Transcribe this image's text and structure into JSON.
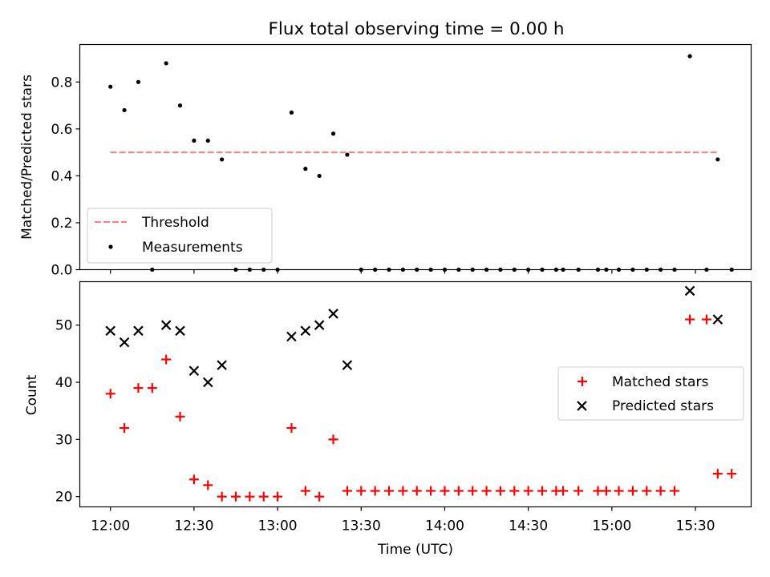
{
  "title": "Flux total observing time = 0.00 h",
  "xlabel": "Time (UTC)",
  "x_ticks": [
    "12:00",
    "12:30",
    "13:00",
    "13:30",
    "14:00",
    "14:30",
    "15:00",
    "15:30"
  ],
  "colors": {
    "threshold": "#ff7f7f",
    "measurements": "#000000",
    "matched": "#ff0000",
    "predicted": "#000000"
  },
  "chart_data": [
    {
      "type": "scatter",
      "ylabel": "Matched/Predicted stars",
      "xlim_minutes": [
        -11,
        230
      ],
      "ylim": [
        0,
        0.96
      ],
      "y_ticks": [
        "0.0",
        "0.2",
        "0.4",
        "0.6",
        "0.8"
      ],
      "legend_position": "lower-left",
      "threshold": {
        "name": "Threshold",
        "value": 0.5,
        "x_range_minutes": [
          0,
          218
        ]
      },
      "series": [
        {
          "name": "Measurements",
          "x_minutes": [
            0,
            5,
            10,
            15,
            20,
            25,
            30,
            35,
            40,
            45,
            50,
            55,
            60,
            65,
            70,
            75,
            80,
            85,
            90,
            95,
            100,
            105,
            110,
            115,
            120,
            125,
            130,
            135,
            140,
            145,
            150,
            155,
            160,
            162.5,
            168,
            175,
            178,
            182.5,
            187.5,
            192.5,
            197.5,
            202.5,
            208,
            214,
            218,
            223
          ],
          "values": [
            0.78,
            0.68,
            0.8,
            0.0,
            0.88,
            0.7,
            0.55,
            0.55,
            0.47,
            0.0,
            0.0,
            0.0,
            0.0,
            0.67,
            0.43,
            0.4,
            0.58,
            0.49,
            0.0,
            0.0,
            0.0,
            0.0,
            0.0,
            0.0,
            0.0,
            0.0,
            0.0,
            0.0,
            0.0,
            0.0,
            0.0,
            0.0,
            0.0,
            0.0,
            0.0,
            0.0,
            0.0,
            0.0,
            0.0,
            0.0,
            0.0,
            0.0,
            0.91,
            0.0,
            0.47,
            0.0
          ]
        }
      ]
    },
    {
      "type": "scatter",
      "ylabel": "Count",
      "xlim_minutes": [
        -11,
        230
      ],
      "ylim": [
        18.2,
        57.6
      ],
      "y_ticks": [
        "20",
        "30",
        "40",
        "50"
      ],
      "legend_position": "center-right",
      "series": [
        {
          "name": "Matched stars",
          "marker": "+",
          "x_minutes": [
            0,
            5,
            10,
            15,
            20,
            25,
            30,
            35,
            40,
            45,
            50,
            55,
            60,
            65,
            70,
            75,
            80,
            85,
            90,
            95,
            100,
            105,
            110,
            115,
            120,
            125,
            130,
            135,
            140,
            145,
            150,
            155,
            160,
            162.5,
            168,
            175,
            178,
            182.5,
            187.5,
            192.5,
            197.5,
            202.5,
            208,
            214,
            218,
            223
          ],
          "values": [
            38,
            32,
            39,
            39,
            44,
            34,
            23,
            22,
            20,
            20,
            20,
            20,
            20,
            32,
            21,
            20,
            30,
            21,
            21,
            21,
            21,
            21,
            21,
            21,
            21,
            21,
            21,
            21,
            21,
            21,
            21,
            21,
            21,
            21,
            21,
            21,
            21,
            21,
            21,
            21,
            21,
            21,
            51,
            51,
            24,
            24
          ]
        },
        {
          "name": "Predicted stars",
          "marker": "x",
          "x_minutes": [
            0,
            5,
            10,
            20,
            25,
            30,
            35,
            40,
            65,
            70,
            75,
            80,
            85,
            208,
            218
          ],
          "values": [
            49,
            47,
            49,
            50,
            49,
            42,
            40,
            43,
            48,
            49,
            50,
            52,
            43,
            56,
            51
          ]
        }
      ]
    }
  ]
}
